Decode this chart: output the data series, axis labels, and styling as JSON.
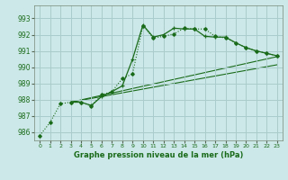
{
  "title": "Graphe pression niveau de la mer (hPa)",
  "background_color": "#cce8e8",
  "grid_color": "#aacccc",
  "line_color": "#1a6b1a",
  "xlim": [
    -0.5,
    23.5
  ],
  "ylim": [
    985.5,
    993.8
  ],
  "yticks": [
    986,
    987,
    988,
    989,
    990,
    991,
    992,
    993
  ],
  "xticks": [
    0,
    1,
    2,
    3,
    4,
    5,
    6,
    7,
    8,
    9,
    10,
    11,
    12,
    13,
    14,
    15,
    16,
    17,
    18,
    19,
    20,
    21,
    22,
    23
  ],
  "series_dotted": {
    "x": [
      0,
      1,
      2,
      3,
      4,
      5,
      6,
      7,
      8,
      9,
      10,
      11,
      12,
      13,
      14,
      15,
      16,
      17,
      18,
      19,
      20,
      21,
      22,
      23
    ],
    "y": [
      985.8,
      986.6,
      987.75,
      987.85,
      987.85,
      987.6,
      988.3,
      988.5,
      989.3,
      989.6,
      992.55,
      991.8,
      991.9,
      992.05,
      992.4,
      992.35,
      992.35,
      991.9,
      991.8,
      991.5,
      991.2,
      991.0,
      990.85,
      990.7
    ]
  },
  "series_solid": {
    "x": [
      3,
      4,
      5,
      6,
      7,
      8,
      9,
      10,
      11,
      12,
      13,
      14,
      15,
      16,
      17,
      18,
      19,
      20,
      21,
      22,
      23
    ],
    "y": [
      987.85,
      987.85,
      987.65,
      988.2,
      988.5,
      988.85,
      990.5,
      992.6,
      991.85,
      992.0,
      992.4,
      992.35,
      992.35,
      991.9,
      991.85,
      991.85,
      991.5,
      991.2,
      991.0,
      990.85,
      990.7
    ]
  },
  "trend1": {
    "x": [
      3,
      23
    ],
    "y": [
      987.85,
      990.65
    ]
  },
  "trend2": {
    "x": [
      3,
      23
    ],
    "y": [
      987.85,
      990.15
    ]
  }
}
